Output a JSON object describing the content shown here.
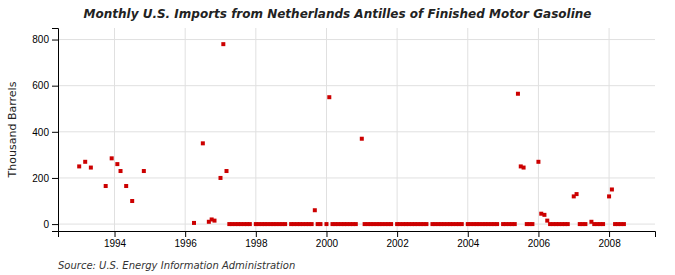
{
  "chart_data": {
    "type": "scatter",
    "title": "Monthly U.S. Imports from Netherlands Antilles of Finished Motor Gasoline",
    "ylabel": "Thousand Barrels",
    "annotations": [
      "Source: U.S. Energy Information Administration"
    ],
    "color": "#cc0000",
    "marker": "square",
    "grid": true,
    "xlim": [
      1992.4,
      2009.3
    ],
    "xticks": [
      1994,
      1996,
      1998,
      2000,
      2002,
      2004,
      2006,
      2008
    ],
    "ylim": [
      -30,
      850
    ],
    "yticks": [
      0,
      200,
      400,
      600,
      800
    ],
    "x": [
      1993.0,
      1993.17,
      1993.33,
      1993.75,
      1993.92,
      1994.08,
      1994.17,
      1994.33,
      1994.5,
      1994.83,
      1996.25,
      1996.5,
      1996.67,
      1996.75,
      1996.83,
      1997.0,
      1997.08,
      1997.17,
      1997.25,
      1997.33,
      1997.42,
      1997.5,
      1997.58,
      1997.67,
      1997.75,
      1997.83,
      1998.0,
      1998.08,
      1998.17,
      1998.25,
      1998.33,
      1998.42,
      1998.5,
      1998.58,
      1998.67,
      1998.75,
      1998.83,
      1999.0,
      1999.08,
      1999.17,
      1999.25,
      1999.33,
      1999.42,
      1999.5,
      1999.58,
      1999.67,
      1999.75,
      1999.83,
      2000.0,
      2000.08,
      2000.17,
      2000.25,
      2000.33,
      2000.42,
      2000.5,
      2000.58,
      2000.67,
      2000.75,
      2000.83,
      2001.0,
      2001.08,
      2001.17,
      2001.25,
      2001.33,
      2001.42,
      2001.5,
      2001.58,
      2001.67,
      2001.75,
      2001.83,
      2002.0,
      2002.08,
      2002.17,
      2002.25,
      2002.33,
      2002.42,
      2002.5,
      2002.58,
      2002.67,
      2002.75,
      2002.83,
      2003.0,
      2003.08,
      2003.17,
      2003.25,
      2003.33,
      2003.42,
      2003.5,
      2003.58,
      2003.67,
      2003.75,
      2003.83,
      2004.0,
      2004.08,
      2004.17,
      2004.25,
      2004.33,
      2004.42,
      2004.5,
      2004.58,
      2004.67,
      2004.75,
      2004.83,
      2005.0,
      2005.08,
      2005.17,
      2005.25,
      2005.33,
      2005.42,
      2005.5,
      2005.58,
      2005.67,
      2005.75,
      2005.83,
      2006.0,
      2006.08,
      2006.17,
      2006.25,
      2006.33,
      2006.42,
      2006.5,
      2006.58,
      2006.67,
      2006.75,
      2006.83,
      2007.0,
      2007.08,
      2007.17,
      2007.25,
      2007.33,
      2007.5,
      2007.58,
      2007.67,
      2007.75,
      2007.83,
      2008.0,
      2008.08,
      2008.17,
      2008.25,
      2008.33,
      2008.42
    ],
    "values": [
      250,
      270,
      245,
      165,
      285,
      260,
      230,
      165,
      100,
      230,
      5,
      350,
      10,
      20,
      15,
      200,
      780,
      230,
      0,
      0,
      0,
      0,
      0,
      0,
      0,
      0,
      0,
      0,
      0,
      0,
      0,
      0,
      0,
      0,
      0,
      0,
      0,
      0,
      0,
      0,
      0,
      0,
      0,
      0,
      0,
      60,
      0,
      0,
      0,
      550,
      0,
      0,
      0,
      0,
      0,
      0,
      0,
      0,
      0,
      370,
      0,
      0,
      0,
      0,
      0,
      0,
      0,
      0,
      0,
      0,
      0,
      0,
      0,
      0,
      0,
      0,
      0,
      0,
      0,
      0,
      0,
      0,
      0,
      0,
      0,
      0,
      0,
      0,
      0,
      0,
      0,
      0,
      0,
      0,
      0,
      0,
      0,
      0,
      0,
      0,
      0,
      0,
      0,
      0,
      0,
      0,
      0,
      0,
      565,
      250,
      245,
      0,
      0,
      0,
      270,
      45,
      40,
      15,
      0,
      0,
      0,
      0,
      0,
      0,
      0,
      120,
      130,
      0,
      0,
      0,
      10,
      0,
      0,
      0,
      0,
      120,
      150,
      0,
      0,
      0,
      0
    ]
  }
}
